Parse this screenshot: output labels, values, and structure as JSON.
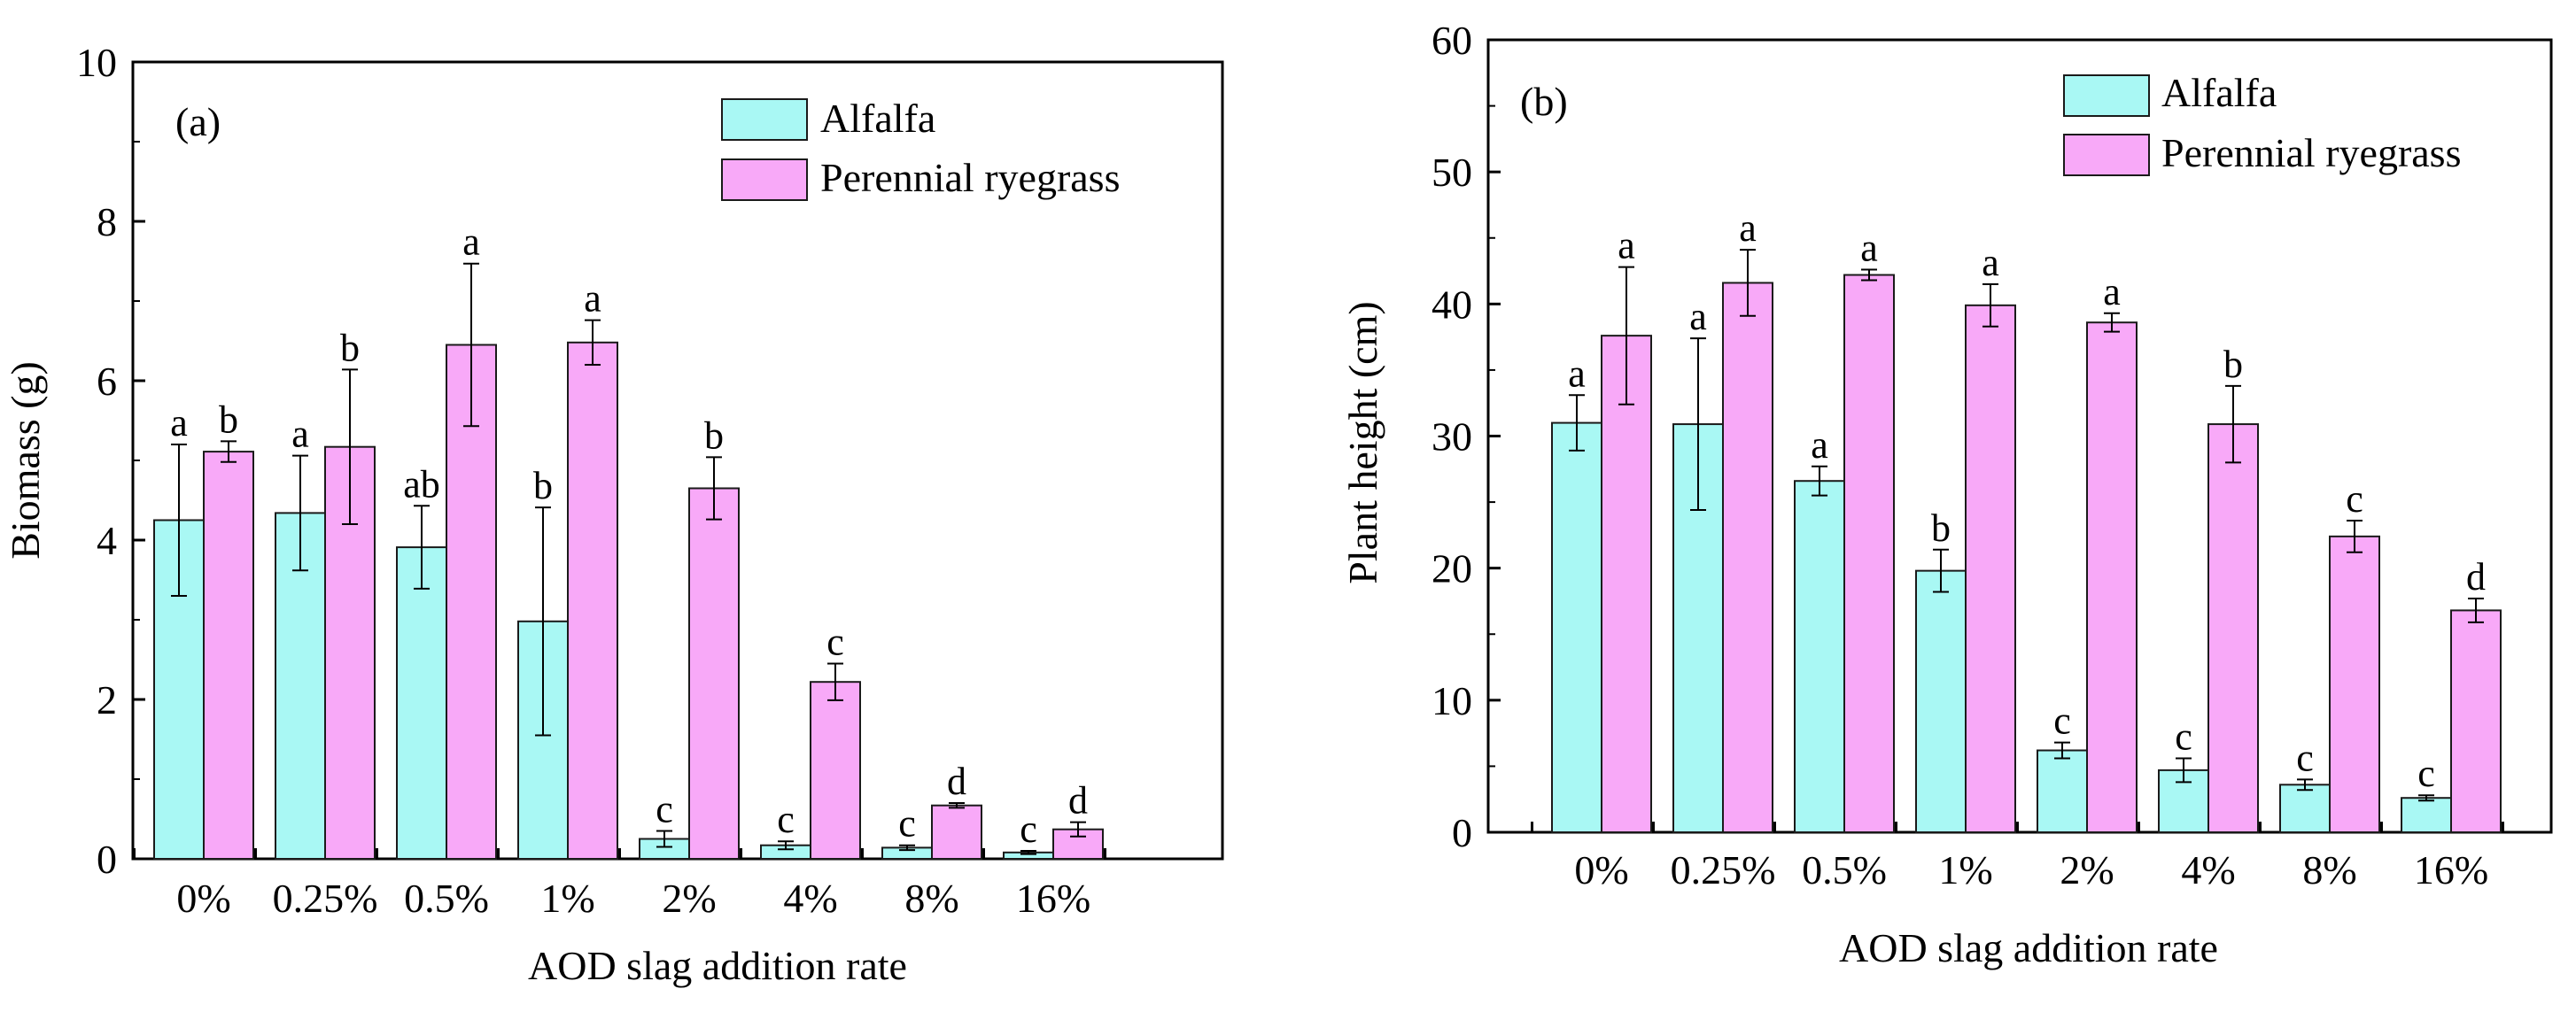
{
  "colors": {
    "series_a": "#a9f8f4",
    "series_b": "#f8a9f8",
    "stroke": "#1a1a1a"
  },
  "chart_data": [
    {
      "type": "bar",
      "panel_label": "(a)",
      "title": "",
      "xlabel": "AOD slag addition rate",
      "ylabel": "Biomass (g)",
      "ylim": [
        0,
        10
      ],
      "yticks": [
        "0",
        "2",
        "4",
        "6",
        "8",
        "10"
      ],
      "categories": [
        "0%",
        "0.25%",
        "0.5%",
        "1%",
        "2%",
        "4%",
        "8%",
        "16%"
      ],
      "legend_position": "top-right",
      "series": [
        {
          "name": "Alfalfa",
          "values": [
            4.25,
            4.34,
            3.91,
            2.98,
            0.25,
            0.17,
            0.14,
            0.08
          ],
          "errors": [
            0.95,
            0.72,
            0.52,
            1.43,
            0.1,
            0.05,
            0.03,
            0.02
          ],
          "letters": [
            "a",
            "a",
            "ab",
            "b",
            "c",
            "c",
            "c",
            "c"
          ]
        },
        {
          "name": "Perennial ryegrass",
          "values": [
            5.11,
            5.17,
            6.45,
            6.48,
            4.65,
            2.22,
            0.67,
            0.37
          ],
          "errors": [
            0.13,
            0.97,
            1.02,
            0.28,
            0.39,
            0.23,
            0.03,
            0.09
          ],
          "letters": [
            "b",
            "b",
            "a",
            "a",
            "b",
            "c",
            "d",
            "d"
          ]
        }
      ]
    },
    {
      "type": "bar",
      "panel_label": "(b)",
      "title": "",
      "xlabel": "AOD slag addition rate",
      "ylabel": "Plant height (cm)",
      "ylim": [
        0,
        60
      ],
      "yticks": [
        "0",
        "10",
        "20",
        "30",
        "40",
        "50",
        "60"
      ],
      "categories": [
        "0%",
        "0.25%",
        "0.5%",
        "1%",
        "2%",
        "4%",
        "8%",
        "16%"
      ],
      "legend_position": "top-right",
      "series": [
        {
          "name": "Alfalfa",
          "values": [
            31.0,
            30.9,
            26.6,
            19.8,
            6.2,
            4.7,
            3.6,
            2.6
          ],
          "errors": [
            2.1,
            6.5,
            1.1,
            1.6,
            0.6,
            0.9,
            0.4,
            0.2
          ],
          "letters": [
            "a",
            "a",
            "a",
            "b",
            "c",
            "c",
            "c",
            "c"
          ]
        },
        {
          "name": "Perennial ryegrass",
          "values": [
            37.6,
            41.6,
            42.2,
            39.9,
            38.6,
            30.9,
            22.4,
            16.8
          ],
          "errors": [
            5.2,
            2.5,
            0.4,
            1.6,
            0.7,
            2.9,
            1.2,
            0.9
          ],
          "letters": [
            "a",
            "a",
            "a",
            "a",
            "a",
            "b",
            "c",
            "d"
          ]
        }
      ]
    }
  ]
}
